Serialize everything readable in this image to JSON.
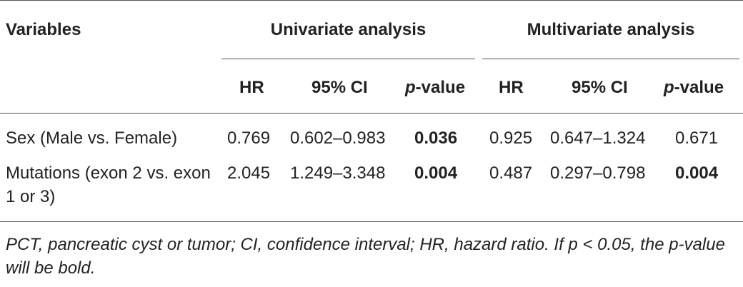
{
  "table": {
    "header": {
      "variables": "Variables",
      "groups": [
        "Univariate analysis",
        "Multivariate analysis"
      ],
      "columns": [
        "HR",
        "95% CI",
        "p-value",
        "HR",
        "95% CI",
        "p-value"
      ]
    },
    "rows": [
      {
        "label": "Sex (Male vs. Female)",
        "cells": [
          "0.769",
          "0.602–0.983",
          "0.036",
          "0.925",
          "0.647–1.324",
          "0.671"
        ],
        "bold": [
          false,
          false,
          true,
          false,
          false,
          false
        ]
      },
      {
        "label": "Mutations (exon 2 vs. exon 1 or 3)",
        "cells": [
          "2.045",
          "1.249–3.348",
          "0.004",
          "0.487",
          "0.297–0.798",
          "0.004"
        ],
        "bold": [
          false,
          false,
          true,
          false,
          false,
          true
        ]
      }
    ],
    "footnote": "PCT, pancreatic cyst or tumor; CI, confidence interval; HR, hazard ratio. If p < 0.05, the p-value will be bold."
  }
}
